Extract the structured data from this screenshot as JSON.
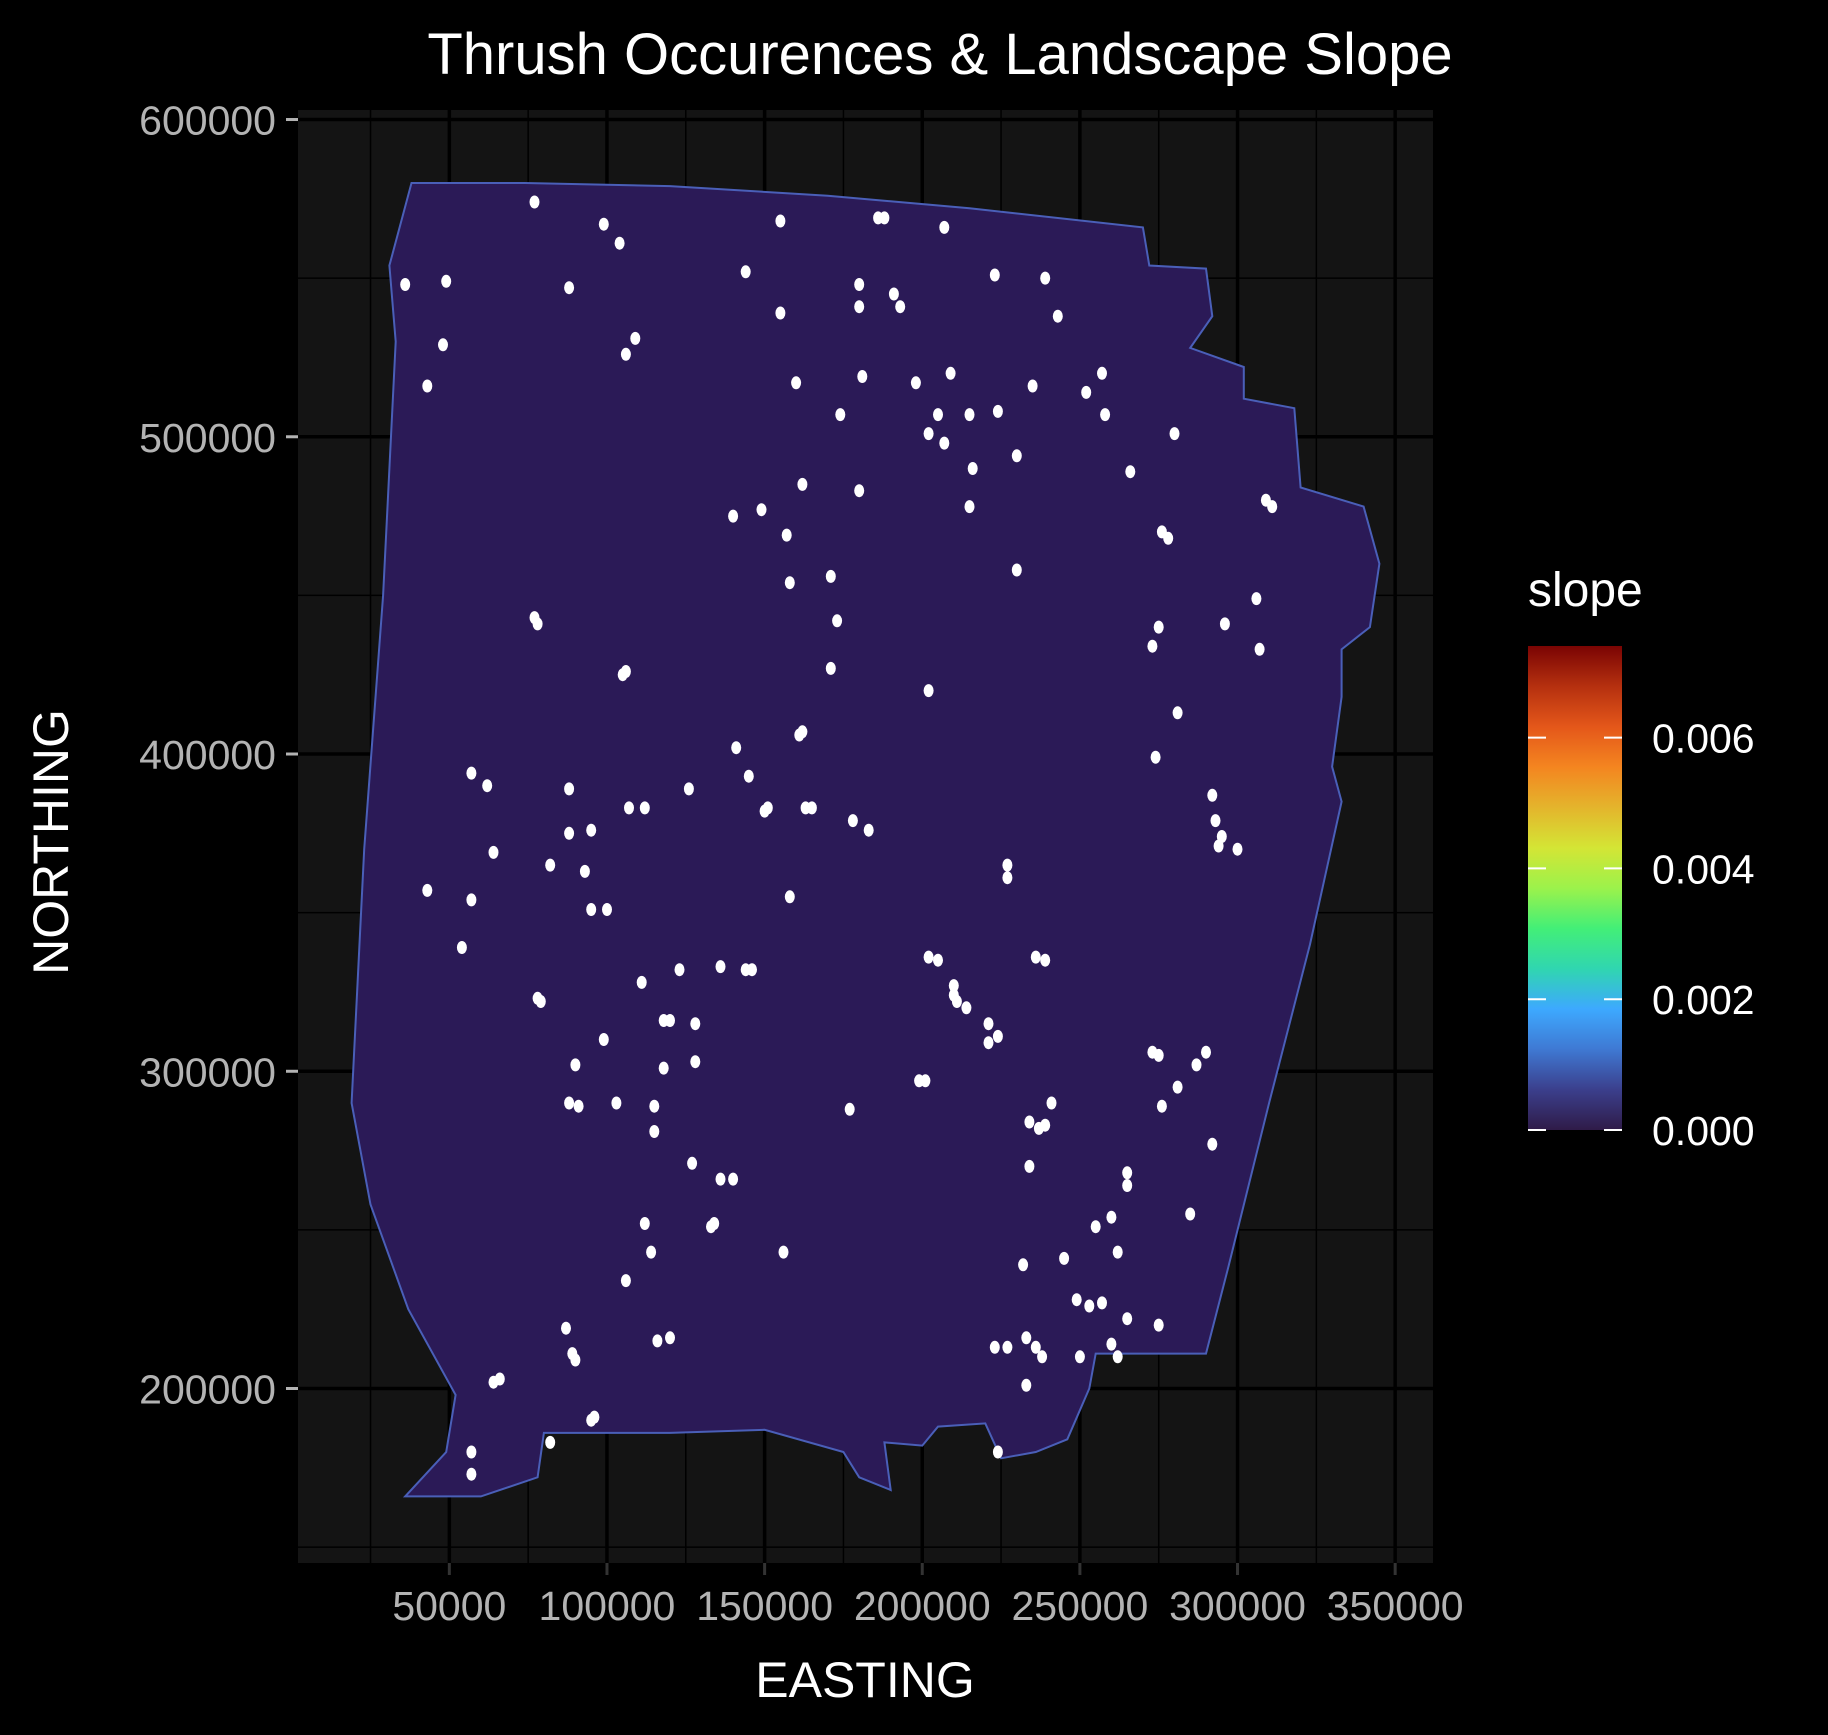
{
  "chart_data": {
    "type": "scatter",
    "title": "Thrush Occurences & Landscape Slope",
    "xlabel": "EASTING",
    "ylabel": "NORTHING",
    "xlim": [
      2000,
      362000
    ],
    "ylim": [
      145000,
      603000
    ],
    "x_ticks": [
      50000,
      100000,
      150000,
      200000,
      250000,
      300000,
      350000
    ],
    "x_tick_labels": [
      "50000",
      "100000",
      "150000",
      "200000",
      "250000",
      "300000",
      "350000"
    ],
    "y_ticks": [
      200000,
      300000,
      400000,
      500000,
      600000
    ],
    "y_tick_labels": [
      "200000",
      "300000",
      "400000",
      "500000",
      "600000"
    ],
    "grid": true,
    "background": "#141414",
    "raster": {
      "name": "slope",
      "fill_color": "#2b1a57",
      "boundary_xy": [
        [
          38000,
          580000
        ],
        [
          74000,
          580000
        ],
        [
          120000,
          579000
        ],
        [
          170000,
          576000
        ],
        [
          215000,
          572000
        ],
        [
          270000,
          566000
        ],
        [
          272000,
          554000
        ],
        [
          290000,
          553000
        ],
        [
          292000,
          538000
        ],
        [
          285000,
          528000
        ],
        [
          302000,
          522000
        ],
        [
          302000,
          512000
        ],
        [
          318000,
          509000
        ],
        [
          320000,
          484000
        ],
        [
          340000,
          478000
        ],
        [
          345000,
          460000
        ],
        [
          342000,
          440000
        ],
        [
          333000,
          433000
        ],
        [
          333000,
          418000
        ],
        [
          330000,
          396000
        ],
        [
          333000,
          385000
        ],
        [
          323000,
          340000
        ],
        [
          310000,
          290000
        ],
        [
          297000,
          238000
        ],
        [
          290000,
          211000
        ],
        [
          255000,
          211000
        ],
        [
          253000,
          200000
        ],
        [
          246000,
          184000
        ],
        [
          236000,
          180000
        ],
        [
          225000,
          178000
        ],
        [
          220000,
          189000
        ],
        [
          205000,
          188000
        ],
        [
          200000,
          182000
        ],
        [
          188000,
          183000
        ],
        [
          190000,
          168000
        ],
        [
          180000,
          172000
        ],
        [
          175000,
          180000
        ],
        [
          150000,
          187000
        ],
        [
          120000,
          186000
        ],
        [
          80000,
          186000
        ],
        [
          78000,
          172000
        ],
        [
          60000,
          166000
        ],
        [
          36000,
          166000
        ],
        [
          49000,
          180000
        ],
        [
          52000,
          198000
        ],
        [
          37000,
          225000
        ],
        [
          25000,
          258000
        ],
        [
          19000,
          290000
        ],
        [
          23000,
          370000
        ],
        [
          29000,
          450000
        ],
        [
          33000,
          530000
        ],
        [
          31000,
          554000
        ]
      ]
    },
    "series": [
      {
        "marker_color": "#ffffff",
        "points": [
          [
            77000,
            574000
          ],
          [
            49000,
            549000
          ],
          [
            36000,
            548000
          ],
          [
            48000,
            529000
          ],
          [
            43000,
            516000
          ],
          [
            88000,
            547000
          ],
          [
            99000,
            567000
          ],
          [
            104000,
            561000
          ],
          [
            109000,
            531000
          ],
          [
            106000,
            526000
          ],
          [
            144000,
            552000
          ],
          [
            155000,
            568000
          ],
          [
            186000,
            569000
          ],
          [
            188000,
            569000
          ],
          [
            207000,
            566000
          ],
          [
            155000,
            539000
          ],
          [
            180000,
            548000
          ],
          [
            180000,
            541000
          ],
          [
            191000,
            545000
          ],
          [
            193000,
            541000
          ],
          [
            223000,
            551000
          ],
          [
            239000,
            550000
          ],
          [
            243000,
            538000
          ],
          [
            160000,
            517000
          ],
          [
            181000,
            519000
          ],
          [
            198000,
            517000
          ],
          [
            209000,
            520000
          ],
          [
            235000,
            516000
          ],
          [
            257000,
            520000
          ],
          [
            252000,
            514000
          ],
          [
            174000,
            507000
          ],
          [
            205000,
            507000
          ],
          [
            215000,
            507000
          ],
          [
            224000,
            508000
          ],
          [
            258000,
            507000
          ],
          [
            202000,
            501000
          ],
          [
            207000,
            498000
          ],
          [
            280000,
            501000
          ],
          [
            230000,
            494000
          ],
          [
            216000,
            490000
          ],
          [
            266000,
            489000
          ],
          [
            162000,
            485000
          ],
          [
            180000,
            483000
          ],
          [
            215000,
            478000
          ],
          [
            149000,
            477000
          ],
          [
            140000,
            475000
          ],
          [
            309000,
            480000
          ],
          [
            311000,
            478000
          ],
          [
            157000,
            469000
          ],
          [
            276000,
            470000
          ],
          [
            278000,
            468000
          ],
          [
            171000,
            456000
          ],
          [
            158000,
            454000
          ],
          [
            230000,
            458000
          ],
          [
            306000,
            449000
          ],
          [
            77000,
            443000
          ],
          [
            78000,
            441000
          ],
          [
            173000,
            442000
          ],
          [
            275000,
            440000
          ],
          [
            296000,
            441000
          ],
          [
            307000,
            433000
          ],
          [
            273000,
            434000
          ],
          [
            171000,
            427000
          ],
          [
            105000,
            425000
          ],
          [
            106000,
            426000
          ],
          [
            202000,
            420000
          ],
          [
            281000,
            413000
          ],
          [
            161000,
            406000
          ],
          [
            162000,
            407000
          ],
          [
            141000,
            402000
          ],
          [
            274000,
            399000
          ],
          [
            145000,
            393000
          ],
          [
            57000,
            394000
          ],
          [
            62000,
            390000
          ],
          [
            88000,
            389000
          ],
          [
            126000,
            389000
          ],
          [
            107000,
            383000
          ],
          [
            112000,
            383000
          ],
          [
            150000,
            382000
          ],
          [
            151000,
            383000
          ],
          [
            163000,
            383000
          ],
          [
            165000,
            383000
          ],
          [
            292000,
            387000
          ],
          [
            293000,
            379000
          ],
          [
            295000,
            374000
          ],
          [
            178000,
            379000
          ],
          [
            183000,
            376000
          ],
          [
            88000,
            375000
          ],
          [
            95000,
            376000
          ],
          [
            294000,
            371000
          ],
          [
            300000,
            370000
          ],
          [
            64000,
            369000
          ],
          [
            82000,
            365000
          ],
          [
            93000,
            363000
          ],
          [
            227000,
            365000
          ],
          [
            227000,
            361000
          ],
          [
            43000,
            357000
          ],
          [
            57000,
            354000
          ],
          [
            158000,
            355000
          ],
          [
            95000,
            351000
          ],
          [
            100000,
            351000
          ],
          [
            54000,
            339000
          ],
          [
            202000,
            336000
          ],
          [
            205000,
            335000
          ],
          [
            236000,
            336000
          ],
          [
            239000,
            335000
          ],
          [
            123000,
            332000
          ],
          [
            136000,
            333000
          ],
          [
            144000,
            332000
          ],
          [
            146000,
            332000
          ],
          [
            111000,
            328000
          ],
          [
            210000,
            327000
          ],
          [
            211000,
            322000
          ],
          [
            78000,
            323000
          ],
          [
            79000,
            322000
          ],
          [
            210000,
            324000
          ],
          [
            214000,
            320000
          ],
          [
            118000,
            316000
          ],
          [
            120000,
            316000
          ],
          [
            128000,
            315000
          ],
          [
            221000,
            315000
          ],
          [
            224000,
            311000
          ],
          [
            221000,
            309000
          ],
          [
            99000,
            310000
          ],
          [
            273000,
            306000
          ],
          [
            275000,
            305000
          ],
          [
            290000,
            306000
          ],
          [
            287000,
            302000
          ],
          [
            128000,
            303000
          ],
          [
            118000,
            301000
          ],
          [
            90000,
            302000
          ],
          [
            199000,
            297000
          ],
          [
            201000,
            297000
          ],
          [
            281000,
            295000
          ],
          [
            88000,
            290000
          ],
          [
            91000,
            289000
          ],
          [
            103000,
            290000
          ],
          [
            115000,
            289000
          ],
          [
            241000,
            290000
          ],
          [
            276000,
            289000
          ],
          [
            177000,
            288000
          ],
          [
            234000,
            284000
          ],
          [
            239000,
            283000
          ],
          [
            237000,
            282000
          ],
          [
            115000,
            281000
          ],
          [
            292000,
            277000
          ],
          [
            127000,
            271000
          ],
          [
            234000,
            270000
          ],
          [
            136000,
            266000
          ],
          [
            140000,
            266000
          ],
          [
            265000,
            268000
          ],
          [
            265000,
            264000
          ],
          [
            260000,
            254000
          ],
          [
            255000,
            251000
          ],
          [
            285000,
            255000
          ],
          [
            112000,
            252000
          ],
          [
            133000,
            251000
          ],
          [
            134000,
            252000
          ],
          [
            156000,
            243000
          ],
          [
            114000,
            243000
          ],
          [
            262000,
            243000
          ],
          [
            245000,
            241000
          ],
          [
            232000,
            239000
          ],
          [
            106000,
            234000
          ],
          [
            249000,
            228000
          ],
          [
            253000,
            226000
          ],
          [
            257000,
            227000
          ],
          [
            265000,
            222000
          ],
          [
            275000,
            220000
          ],
          [
            87000,
            219000
          ],
          [
            120000,
            216000
          ],
          [
            116000,
            215000
          ],
          [
            233000,
            216000
          ],
          [
            236000,
            213000
          ],
          [
            227000,
            213000
          ],
          [
            223000,
            213000
          ],
          [
            238000,
            210000
          ],
          [
            250000,
            210000
          ],
          [
            260000,
            214000
          ],
          [
            262000,
            210000
          ],
          [
            89000,
            211000
          ],
          [
            90000,
            209000
          ],
          [
            64000,
            202000
          ],
          [
            66000,
            203000
          ],
          [
            233000,
            201000
          ],
          [
            95000,
            190000
          ],
          [
            96000,
            191000
          ],
          [
            82000,
            183000
          ],
          [
            224000,
            180000
          ],
          [
            57000,
            180000
          ],
          [
            57000,
            173000
          ]
        ]
      }
    ],
    "legend": {
      "title": "slope",
      "position": "right",
      "range": [
        0,
        0.0074
      ],
      "ticks": [
        0,
        0.002,
        0.004,
        0.006
      ],
      "tick_labels": [
        "0.000",
        "0.002",
        "0.004",
        "0.006"
      ],
      "colors": [
        "#2f1b48",
        "#3b3f8c",
        "#3f79d3",
        "#3da9ff",
        "#30d6b0",
        "#43ef77",
        "#9cf24b",
        "#d4e535",
        "#e4b42c",
        "#f48520",
        "#e4571a",
        "#b5300f",
        "#7a0403"
      ]
    }
  }
}
